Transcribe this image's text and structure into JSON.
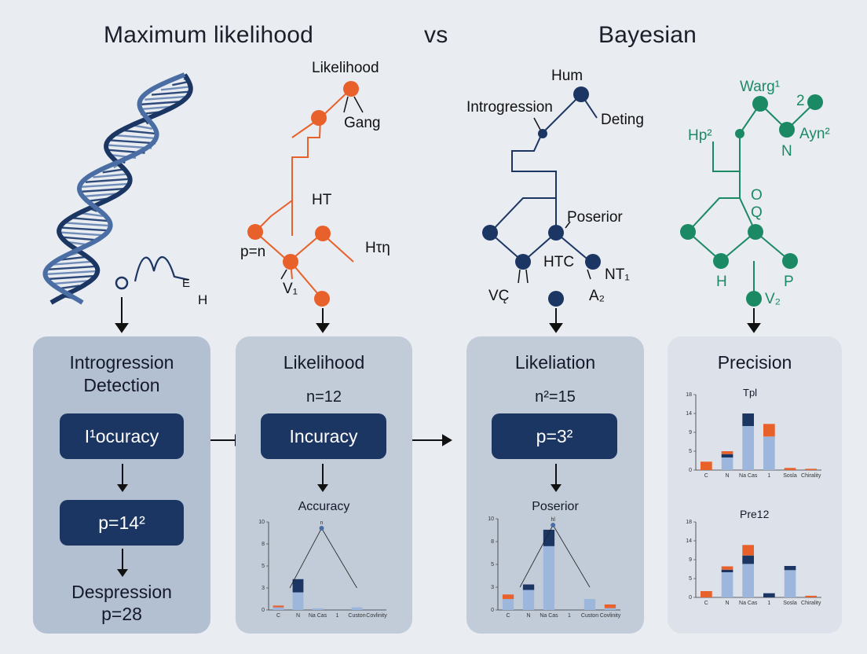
{
  "header": {
    "left_title": "Maximum likelihood",
    "vs": "vs",
    "right_title": "Bayesian"
  },
  "trees": {
    "orange": {
      "color": "#e8612b",
      "labels": {
        "top": "Likelihood",
        "gang": "Gang",
        "ht": "HT",
        "pn": "p=n",
        "htn": "Hτη",
        "v1": "V₁"
      }
    },
    "navy": {
      "color": "#1c3664",
      "labels": {
        "hum": "Hum",
        "introgression": "Introgression",
        "deting": "Deting",
        "poserior": "Poserior",
        "htc": "HTC",
        "vc": "VC̨",
        "nt": "NT₁",
        "a2": "A₂"
      }
    },
    "green": {
      "color": "#1b8a64",
      "labels": {
        "warg": "Warg¹",
        "two": "2",
        "hp": "Hp²",
        "ayn": "Ayn²",
        "n": "N",
        "o": "O",
        "q": "Q",
        "h": "H",
        "p": "P",
        "v2": "V₂"
      }
    }
  },
  "dna": {
    "h_label": "H",
    "e_label": "E"
  },
  "panels": {
    "p1": {
      "title_line1": "Introgression",
      "title_line2": "Detection",
      "button1": "I¹ocuracy",
      "button2": "p=14²",
      "footer_line1": "Despression",
      "footer_line2": "p=28"
    },
    "p2": {
      "title": "Likelihood",
      "sub": "n=12",
      "button": "Incuracy",
      "chart_title": "Accuracy"
    },
    "p3": {
      "title": "Likeliation",
      "sub": "n²=15",
      "button": "p=3²",
      "chart_title": "Poserior"
    },
    "p4": {
      "title": "Precision",
      "chart1_title": "Tpl",
      "chart2_title": "Pre12"
    }
  },
  "chart_data": [
    {
      "type": "bar",
      "title": "Accuracy",
      "categories": [
        "C",
        "N",
        "Na Cas",
        "1",
        "Custon",
        "Covlinity"
      ],
      "series": [
        {
          "name": "",
          "color": "#9db6dc",
          "values": [
            0.3,
            2.0,
            0.2,
            0,
            0.3,
            0
          ]
        },
        {
          "name": "",
          "color": "#1c3664",
          "values": [
            0,
            1.5,
            0,
            0,
            0,
            0
          ]
        },
        {
          "name": "",
          "color": "#e8612b",
          "values": [
            0.2,
            0,
            0,
            0,
            0,
            0
          ]
        }
      ],
      "ylim": [
        0,
        10
      ],
      "annotation": "n"
    },
    {
      "type": "bar",
      "title": "Poserior",
      "categories": [
        "C",
        "N",
        "Na Cas",
        "1",
        "Custon",
        "Covlinity"
      ],
      "series": [
        {
          "name": "",
          "color": "#9db6dc",
          "values": [
            1.2,
            2.2,
            7.0,
            0,
            1.2,
            0.2
          ]
        },
        {
          "name": "",
          "color": "#1c3664",
          "values": [
            0,
            0.6,
            1.8,
            0,
            0,
            0
          ]
        },
        {
          "name": "",
          "color": "#e8612b",
          "values": [
            0.5,
            0,
            0,
            0,
            0,
            0.4
          ]
        }
      ],
      "ylim": [
        0,
        10
      ],
      "annotation": "hl"
    },
    {
      "type": "bar",
      "title": "Tpl",
      "categories": [
        "C",
        "N",
        "Na Cas",
        "1",
        "Sosla",
        "Chirality"
      ],
      "series": [
        {
          "name": "",
          "color": "#9db6dc",
          "values": [
            0,
            3.0,
            10.5,
            8.0,
            0,
            0
          ]
        },
        {
          "name": "",
          "color": "#1c3664",
          "values": [
            0,
            0.8,
            3.0,
            0,
            0,
            0
          ]
        },
        {
          "name": "",
          "color": "#e8612b",
          "values": [
            2.0,
            0.7,
            0,
            3.0,
            0.5,
            0.3
          ]
        }
      ],
      "ylim": [
        0,
        18
      ]
    },
    {
      "type": "bar",
      "title": "Pre12",
      "categories": [
        "C",
        "N",
        "Na Cas",
        "1",
        "Sosla",
        "Chirality"
      ],
      "series": [
        {
          "name": "",
          "color": "#9db6dc",
          "values": [
            0,
            6.0,
            8.0,
            0,
            6.5,
            0
          ]
        },
        {
          "name": "",
          "color": "#1c3664",
          "values": [
            0,
            0.6,
            2.0,
            1.0,
            1.0,
            0
          ]
        },
        {
          "name": "",
          "color": "#e8612b",
          "values": [
            1.5,
            0.8,
            2.5,
            0,
            0,
            0.4
          ]
        }
      ],
      "ylim": [
        0,
        18
      ]
    }
  ]
}
